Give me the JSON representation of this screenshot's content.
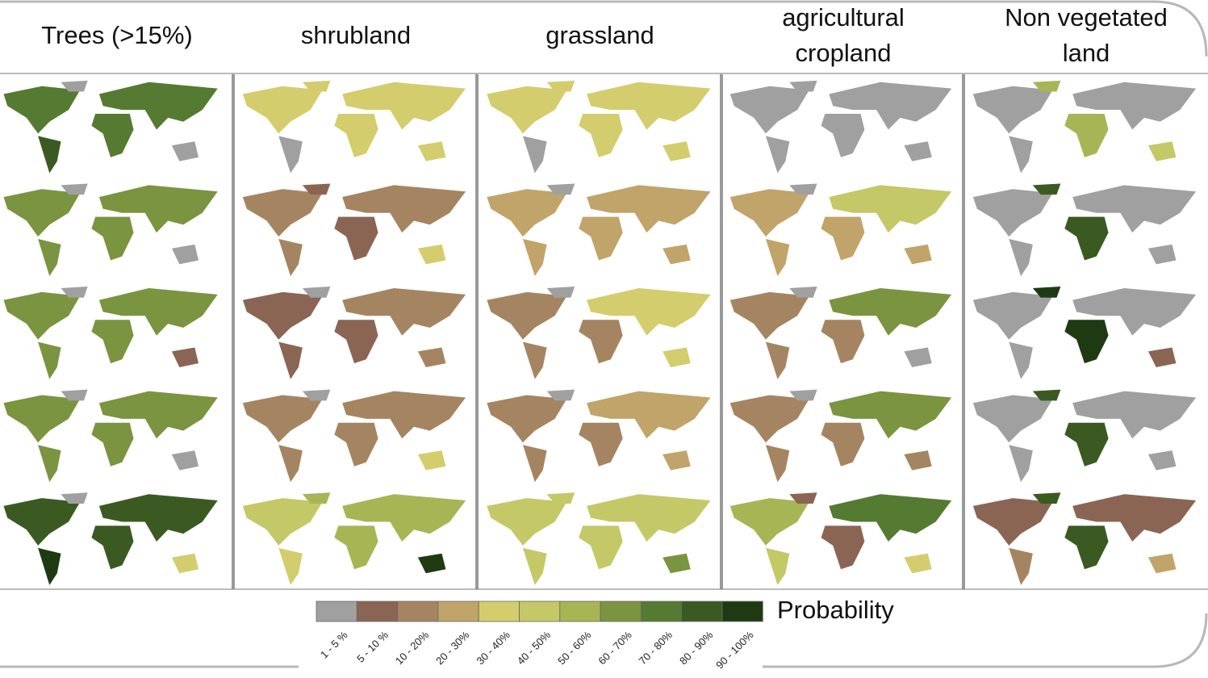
{
  "columns": [
    {
      "lines": [
        "Trees (>15%)"
      ]
    },
    {
      "lines": [
        "shrubland"
      ]
    },
    {
      "lines": [
        "grassland"
      ]
    },
    {
      "lines": [
        "agricultural",
        "cropland"
      ]
    },
    {
      "lines": [
        "Non vegetated",
        "land"
      ]
    }
  ],
  "legend": {
    "title": "Probability",
    "items": [
      {
        "label": "1 - 5 %",
        "color": "#a0a0a0"
      },
      {
        "label": "5 - 10 %",
        "color": "#8b6553"
      },
      {
        "label": "10 - 20%",
        "color": "#a58561"
      },
      {
        "label": "20 - 30%",
        "color": "#c1a469"
      },
      {
        "label": "30 - 40%",
        "color": "#d3cd6e"
      },
      {
        "label": "40 - 50%",
        "color": "#c4c867"
      },
      {
        "label": "50 - 60%",
        "color": "#a8b555"
      },
      {
        "label": "60 - 70%",
        "color": "#7a9440"
      },
      {
        "label": "70 - 80%",
        "color": "#557a31"
      },
      {
        "label": "80 - 90%",
        "color": "#3b5a22"
      },
      {
        "label": "90 - 100%",
        "color": "#1f3a12"
      }
    ]
  }
}
